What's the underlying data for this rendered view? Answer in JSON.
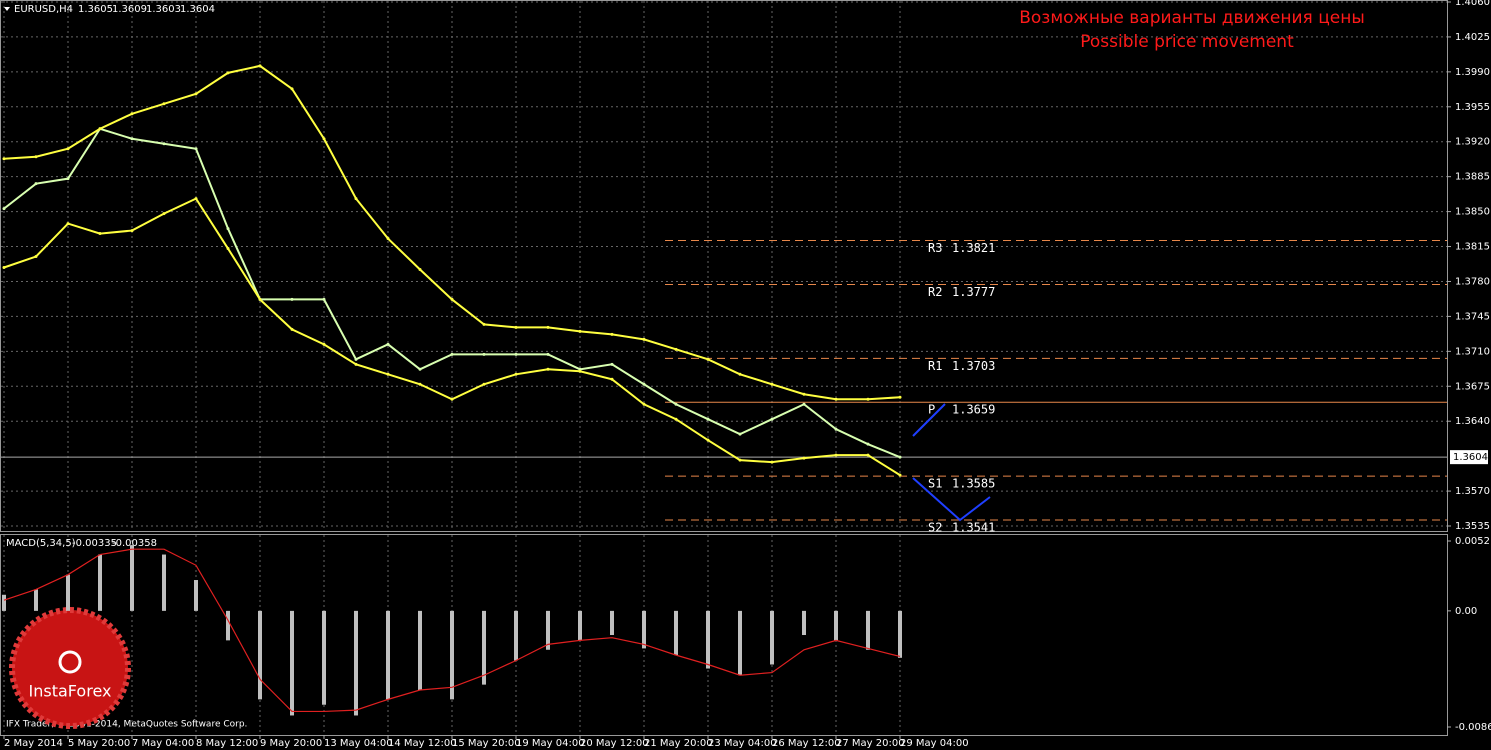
{
  "symbol": "EURUSD,H4",
  "ohlc": [
    1.3605,
    1.3609,
    1.3603,
    1.3604
  ],
  "annotations": [
    "Возможные варианты движения цены",
    "Possible price movement"
  ],
  "footer": "IFX Trader, © 2001-2014, MetaQuotes Software Corp.",
  "logo": "InstaForex",
  "chart_data": [
    {
      "type": "line",
      "grid": true,
      "categories": [
        "2 May 2014",
        null,
        "5 May 20:00",
        null,
        "7 May 04:00",
        null,
        "8 May 12:00",
        null,
        "9 May 20:00",
        null,
        "13 May 04:00",
        null,
        "14 May 12:00",
        null,
        "15 May 20:00",
        null,
        "19 May 04:00",
        null,
        "20 May 12:00",
        null,
        "21 May 20:00",
        null,
        "23 May 04:00",
        null,
        "26 May 12:00",
        null,
        "27 May 20:00",
        null,
        "29 May 04:00"
      ],
      "series": [
        {
          "color": "#d8ffb0",
          "values": [
            1.3853,
            1.3878,
            1.3883,
            1.3933,
            1.3923,
            1.3918,
            1.3913,
            1.3833,
            1.3762,
            1.3762,
            1.3762,
            1.3702,
            1.3717,
            1.3692,
            1.3707,
            1.3707,
            1.3707,
            1.3707,
            1.3692,
            1.3697,
            1.3677,
            1.3657,
            1.3642,
            1.3627,
            1.3642,
            1.3657,
            1.3632,
            1.3617,
            1.3604
          ]
        },
        {
          "color": "#ffff40",
          "values": [
            1.3903,
            1.3905,
            1.3913,
            1.3933,
            1.3948,
            1.3958,
            1.3968,
            1.3989,
            1.3996,
            1.3973,
            1.3923,
            1.3863,
            1.3823,
            1.3792,
            1.3762,
            1.3737,
            1.3734,
            1.3734,
            1.373,
            1.3727,
            1.3722,
            1.3712,
            1.3702,
            1.3687,
            1.3677,
            1.3667,
            1.3662,
            1.3662,
            1.3664
          ]
        },
        {
          "color": "#ffff40",
          "values": [
            1.3794,
            1.3805,
            1.3838,
            1.3828,
            1.3831,
            1.3848,
            1.3863,
            1.3813,
            1.3762,
            1.3732,
            1.3717,
            1.3697,
            1.3687,
            1.3677,
            1.3662,
            1.3677,
            1.3687,
            1.3692,
            1.369,
            1.3682,
            1.3657,
            1.3642,
            1.3621,
            1.3601,
            1.3599,
            1.3603,
            1.3606,
            1.3606,
            1.3586
          ]
        }
      ],
      "ylim": [
        1.353,
        1.4062
      ],
      "yticks": [
        {
          "value": 1.406,
          "label": "1.4060"
        },
        1.4025,
        {
          "value": 1.399,
          "label": "1.3990"
        },
        1.3955,
        {
          "value": 1.392,
          "label": "1.3920"
        },
        1.3885,
        {
          "value": 1.385,
          "label": "1.3850"
        },
        1.3815,
        {
          "value": 1.378,
          "label": "1.3780"
        },
        1.3745,
        {
          "value": 1.371,
          "label": "1.3710"
        },
        1.3675,
        {
          "value": 1.364,
          "label": "1.3640"
        },
        {
          "value": 1.357,
          "label": "1.3570"
        },
        1.3535
      ],
      "levels": [
        {
          "label": "R3",
          "value": 1.3821
        },
        {
          "label": "R2",
          "value": 1.3777
        },
        {
          "label": "R1",
          "value": 1.3703
        },
        {
          "label": "P",
          "value": 1.3659
        },
        {
          "label": "S1",
          "value": 1.3585
        },
        {
          "label": "S2",
          "value": 1.3541
        }
      ],
      "level_color": "#e8874a",
      "last_price": 1.3604
    },
    {
      "type": "bar",
      "title": "MACD(5,34,5)",
      "readings": [
        -0.00335,
        -0.00358
      ],
      "values": [
        0.0012,
        0.0016,
        0.0027,
        0.0042,
        0.0049,
        0.0042,
        0.0023,
        -0.0022,
        -0.0066,
        -0.0078,
        -0.007,
        -0.0078,
        -0.0066,
        -0.0059,
        -0.0066,
        -0.0055,
        -0.0037,
        -0.0029,
        -0.0022,
        -0.0018,
        -0.0028,
        -0.0033,
        -0.0043,
        -0.0048,
        -0.004,
        -0.0018,
        -0.0022,
        -0.0029,
        -0.0035
      ],
      "color": "#c0c0c0",
      "signal": [
        0.0008,
        0.0016,
        0.0027,
        0.0042,
        0.0046,
        0.0046,
        0.0034,
        -0.0007,
        -0.0051,
        -0.0075,
        -0.0075,
        -0.0074,
        -0.0066,
        -0.0059,
        -0.0057,
        -0.0048,
        -0.0037,
        -0.0025,
        -0.0022,
        -0.002,
        -0.0025,
        -0.0033,
        -0.004,
        -0.0048,
        -0.0046,
        -0.0029,
        -0.0022,
        -0.0028,
        -0.0034
      ],
      "signal_color": "#e02020",
      "ylim": [
        -0.00866,
        0.00521
      ],
      "yticks": [
        0.00521,
        {
          "value": 0,
          "label": "0.00"
        },
        -0.00866
      ]
    }
  ]
}
